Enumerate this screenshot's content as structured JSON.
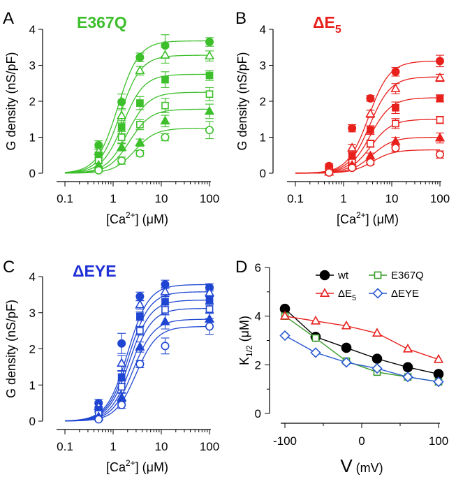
{
  "chart_data": [
    {
      "panel": "A",
      "type": "scatter",
      "title": "E367Q",
      "title_color": "#3cbf2a",
      "color": "#3cbf2a",
      "xscale": "log",
      "xlim": [
        0.1,
        100
      ],
      "xticks": [
        0.1,
        1,
        10,
        100
      ],
      "xtick_labels": [
        "0.1",
        "1",
        "10",
        "100"
      ],
      "ylim": [
        0,
        4
      ],
      "yticks": [
        0,
        1,
        2,
        3,
        4
      ],
      "ytick_labels": [
        "0",
        "1",
        "2",
        "3",
        "4"
      ],
      "xlabel": "[Ca2+] (μM)",
      "xlabel_parts": {
        "pre": "[Ca",
        "sup": "2+",
        "post": "] (",
        "unit": "μ",
        "tail": "M)"
      },
      "ylabel": "G density (nS/pF)",
      "x": [
        0.5,
        1.5,
        3.6,
        12,
        100
      ],
      "series": [
        {
          "marker": "circle-filled",
          "values": [
            0.78,
            1.98,
            3.22,
            3.55,
            3.65
          ],
          "errors": [
            0.12,
            0.22,
            0.12,
            0.3,
            0.12
          ],
          "fit_max": 3.68,
          "fit_k": 1.25
        },
        {
          "marker": "triangle-open",
          "values": [
            0.6,
            1.6,
            2.85,
            3.28,
            3.26
          ],
          "errors": [
            0.1,
            0.2,
            0.12,
            0.22,
            0.14
          ],
          "fit_max": 3.28,
          "fit_k": 1.4
        },
        {
          "marker": "square-filled",
          "values": [
            0.5,
            1.28,
            1.95,
            2.6,
            2.72
          ],
          "errors": [
            0.08,
            0.18,
            0.18,
            0.22,
            0.14
          ],
          "fit_max": 2.75,
          "fit_k": 1.6
        },
        {
          "marker": "square-open",
          "values": [
            0.35,
            1.0,
            1.35,
            1.88,
            2.2
          ],
          "errors": [
            0.08,
            0.16,
            0.14,
            0.2,
            0.18
          ],
          "fit_max": 2.25,
          "fit_k": 2.0
        },
        {
          "marker": "triangle-filled",
          "values": [
            0.22,
            0.72,
            0.85,
            1.45,
            1.72
          ],
          "errors": [
            0.06,
            0.1,
            0.1,
            0.16,
            0.2
          ],
          "fit_max": 1.78,
          "fit_k": 2.2
        },
        {
          "marker": "circle-open",
          "values": [
            0.08,
            0.35,
            0.55,
            1.0,
            1.2
          ],
          "errors": [
            0.05,
            0.1,
            0.08,
            0.1,
            0.24
          ],
          "fit_max": 1.25,
          "fit_k": 2.8
        }
      ]
    },
    {
      "panel": "B",
      "type": "scatter",
      "title": "ΔE5",
      "title_parts": {
        "main": "ΔE",
        "sub": "5"
      },
      "title_color": "#e8201c",
      "color": "#e8201c",
      "xscale": "log",
      "xlim": [
        0.1,
        100
      ],
      "xticks": [
        0.1,
        1,
        10,
        100
      ],
      "xtick_labels": [
        "0.1",
        "1",
        "10",
        "100"
      ],
      "ylim": [
        0,
        4
      ],
      "yticks": [
        0,
        1,
        2,
        3,
        4
      ],
      "ytick_labels": [
        "0",
        "1",
        "2",
        "3",
        "4"
      ],
      "xlabel": "[Ca2+] (μM)",
      "xlabel_parts": {
        "pre": "[Ca",
        "sup": "2+",
        "post": "] (",
        "unit": "μ",
        "tail": "M)"
      },
      "ylabel": "G density (nS/pF)",
      "x": [
        0.5,
        1.5,
        3.6,
        12,
        100
      ],
      "series": [
        {
          "marker": "circle-filled",
          "values": [
            0.2,
            1.25,
            2.08,
            2.82,
            3.12
          ],
          "errors": [
            0.06,
            0.1,
            0.08,
            0.12,
            0.16
          ],
          "fit_max": 3.12,
          "fit_k": 3.3
        },
        {
          "marker": "triangle-open",
          "values": [
            0.1,
            0.7,
            1.65,
            2.35,
            2.65
          ],
          "errors": [
            0.05,
            0.1,
            0.1,
            0.14,
            0.1
          ],
          "fit_max": 2.68,
          "fit_k": 3.5
        },
        {
          "marker": "square-filled",
          "values": [
            0.08,
            0.48,
            1.2,
            1.82,
            2.08
          ],
          "errors": [
            0.04,
            0.08,
            0.12,
            0.16,
            0.1
          ],
          "fit_max": 2.1,
          "fit_k": 3.6
        },
        {
          "marker": "square-open",
          "values": [
            0.05,
            0.3,
            0.82,
            1.38,
            1.48
          ],
          "errors": [
            0.04,
            0.06,
            0.1,
            0.14,
            0.1
          ],
          "fit_max": 1.5,
          "fit_k": 3.7
        },
        {
          "marker": "triangle-filled",
          "values": [
            0.03,
            0.22,
            0.48,
            0.88,
            0.98
          ],
          "errors": [
            0.03,
            0.06,
            0.08,
            0.12,
            0.14
          ],
          "fit_max": 1.0,
          "fit_k": 3.9
        },
        {
          "marker": "circle-open",
          "values": [
            0.02,
            0.15,
            0.3,
            0.7,
            0.52
          ],
          "errors": [
            0.02,
            0.05,
            0.06,
            0.1,
            0.1
          ],
          "fit_max": 0.65,
          "fit_k": 4.0
        }
      ]
    },
    {
      "panel": "C",
      "type": "scatter",
      "title": "ΔEYE",
      "title_color": "#1f2fd6",
      "color": "#1f46d2",
      "xscale": "log",
      "xlim": [
        0.1,
        100
      ],
      "xticks": [
        0.1,
        1,
        10,
        100
      ],
      "xtick_labels": [
        "0.1",
        "1",
        "10",
        "100"
      ],
      "ylim": [
        0,
        4
      ],
      "yticks": [
        0,
        1,
        2,
        3,
        4
      ],
      "ytick_labels": [
        "0",
        "1",
        "2",
        "3",
        "4"
      ],
      "xlabel": "[Ca2+] (μM)",
      "xlabel_parts": {
        "pre": "[Ca",
        "sup": "2+",
        "post": "] (",
        "unit": "μ",
        "tail": "M)"
      },
      "ylabel": "G density (nS/pF)",
      "x": [
        0.5,
        1.5,
        3.6,
        12,
        100
      ],
      "series": [
        {
          "marker": "circle-filled",
          "values": [
            0.5,
            2.15,
            3.45,
            3.78,
            3.7
          ],
          "errors": [
            0.1,
            0.28,
            0.12,
            0.12,
            0.1
          ],
          "fit_max": 3.78,
          "fit_k": 2.0
        },
        {
          "marker": "triangle-open",
          "values": [
            0.4,
            1.6,
            3.22,
            3.58,
            3.55
          ],
          "errors": [
            0.08,
            0.22,
            0.12,
            0.12,
            0.1
          ],
          "fit_max": 3.58,
          "fit_k": 2.1
        },
        {
          "marker": "square-filled",
          "values": [
            0.32,
            1.22,
            2.9,
            3.3,
            3.35
          ],
          "errors": [
            0.06,
            0.18,
            0.12,
            0.14,
            0.1
          ],
          "fit_max": 3.35,
          "fit_k": 2.2
        },
        {
          "marker": "square-open",
          "values": [
            0.2,
            0.95,
            2.5,
            3.08,
            3.1
          ],
          "errors": [
            0.05,
            0.16,
            0.12,
            0.14,
            0.12
          ],
          "fit_max": 3.12,
          "fit_k": 2.4
        },
        {
          "marker": "triangle-filled",
          "values": [
            0.12,
            0.65,
            2.05,
            2.75,
            2.82
          ],
          "errors": [
            0.04,
            0.12,
            0.14,
            0.2,
            0.18
          ],
          "fit_max": 2.82,
          "fit_k": 2.6
        },
        {
          "marker": "circle-open",
          "values": [
            0.05,
            0.45,
            1.58,
            2.08,
            2.62
          ],
          "errors": [
            0.03,
            0.1,
            0.1,
            0.22,
            0.22
          ],
          "fit_max": 2.62,
          "fit_k": 3.0
        }
      ]
    },
    {
      "panel": "D",
      "type": "line",
      "xlabel": "V (mV)",
      "xlabel_parts": {
        "main": "V",
        "unit": "(mV)"
      },
      "ylabel": "K1/2 (μM)",
      "ylabel_parts": {
        "main": "K",
        "sub": "1/2",
        "post": " (",
        "unit": "μ",
        "tail": "M)"
      },
      "xlim": [
        -100,
        100
      ],
      "xticks": [
        -100,
        0,
        100
      ],
      "xtick_labels": [
        "-100",
        "0",
        "100"
      ],
      "ylim": [
        0,
        6
      ],
      "yticks": [
        0,
        2,
        4,
        6
      ],
      "ytick_labels": [
        "0",
        "2",
        "4",
        "6"
      ],
      "x": [
        -100,
        -60,
        -20,
        20,
        60,
        100
      ],
      "legend_position": "top",
      "series": [
        {
          "name": "wt",
          "legend_parts": {
            "main": "wt"
          },
          "color": "#000000",
          "marker": "circle-filled",
          "values": [
            4.3,
            3.15,
            2.7,
            2.25,
            1.9,
            1.62
          ]
        },
        {
          "name": "E367Q",
          "legend_parts": {
            "main": "E367Q"
          },
          "color": "#3a9a2a",
          "marker": "square-open",
          "values": [
            4.0,
            3.1,
            2.15,
            1.7,
            1.5,
            1.3
          ]
        },
        {
          "name": "ΔE5",
          "legend_parts": {
            "main": "ΔE",
            "sub": "5"
          },
          "color": "#e8201c",
          "marker": "triangle-open",
          "values": [
            4.0,
            3.8,
            3.6,
            3.3,
            2.65,
            2.22
          ]
        },
        {
          "name": "ΔEYE",
          "legend_parts": {
            "main": "ΔEYE"
          },
          "color": "#2a5ad0",
          "marker": "diamond-open",
          "values": [
            3.2,
            2.5,
            2.1,
            1.85,
            1.5,
            1.3
          ]
        }
      ]
    }
  ]
}
